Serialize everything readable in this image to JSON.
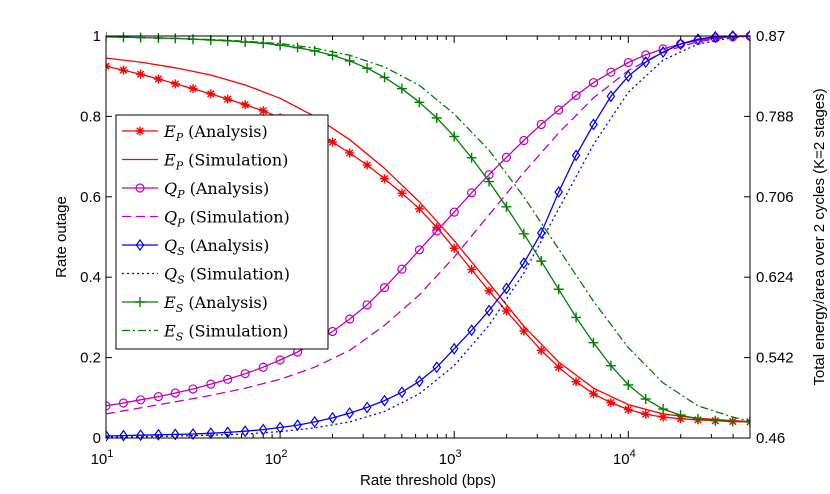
{
  "chart_data": {
    "type": "line",
    "xlabel": "Rate threshold (bps)",
    "ylabel": "Rate outage",
    "ylabel_right": "Total energy/area over 2 cycles (K=2 stages)",
    "x_scale": "log",
    "xlim": [
      10,
      50000
    ],
    "ylim": [
      0,
      1
    ],
    "x_ticks": [
      {
        "base": "10",
        "exp": "1"
      },
      {
        "base": "10",
        "exp": "2"
      },
      {
        "base": "10",
        "exp": "3"
      },
      {
        "base": "10",
        "exp": "4"
      }
    ],
    "y_ticks": [
      "0",
      "0.2",
      "0.4",
      "0.6",
      "0.8",
      "1"
    ],
    "y2_ticks": [
      "0.46",
      "0.542",
      "0.624",
      "0.706",
      "0.788",
      "0.87"
    ],
    "y2lim": [
      0.46,
      0.87
    ],
    "grid": false,
    "legend_position": "left-center",
    "colors": {
      "red": "#ff0000",
      "magenta": "#bf00bf",
      "blue": "#0000ff",
      "green": "#008000"
    },
    "series": [
      {
        "sym": "E",
        "sub": "P",
        "label": "(Analysis)",
        "color": "#ff0000",
        "dash": "",
        "marker": "asterisk",
        "x": [
          10,
          12.6,
          15.8,
          20,
          25,
          31.6,
          40,
          50,
          63,
          80,
          100,
          126,
          158,
          200,
          251,
          316,
          398,
          501,
          631,
          794,
          1000,
          1259,
          1585,
          1995,
          2512,
          3162,
          3981,
          5012,
          6310,
          7943,
          10000,
          12589,
          15849,
          19953,
          25119,
          31623,
          39811,
          50000
        ],
        "y": [
          0.925,
          0.915,
          0.905,
          0.893,
          0.881,
          0.869,
          0.856,
          0.843,
          0.829,
          0.814,
          0.797,
          0.779,
          0.759,
          0.736,
          0.709,
          0.679,
          0.645,
          0.609,
          0.57,
          0.524,
          0.472,
          0.419,
          0.366,
          0.316,
          0.266,
          0.218,
          0.176,
          0.14,
          0.11,
          0.088,
          0.071,
          0.059,
          0.052,
          0.048,
          0.045,
          0.043,
          0.041,
          0.04
        ]
      },
      {
        "sym": "E",
        "sub": "P",
        "label": "(Simulation)",
        "color": "#ff0000",
        "dash": "",
        "marker": "none",
        "x": [
          10,
          15.8,
          25,
          40,
          63,
          100,
          158,
          251,
          398,
          631,
          1000,
          1585,
          2512,
          3981,
          6310,
          10000,
          15849,
          25119,
          39811,
          50000
        ],
        "y": [
          0.945,
          0.935,
          0.921,
          0.903,
          0.878,
          0.845,
          0.8,
          0.742,
          0.671,
          0.587,
          0.491,
          0.385,
          0.278,
          0.189,
          0.124,
          0.083,
          0.06,
          0.049,
          0.043,
          0.041
        ]
      },
      {
        "sym": "Q",
        "sub": "P",
        "label": "(Analysis)",
        "color": "#bf00bf",
        "dash": "",
        "marker": "circle",
        "x": [
          10,
          12.6,
          15.8,
          20,
          25,
          31.6,
          40,
          50,
          63,
          80,
          100,
          126,
          158,
          200,
          251,
          316,
          398,
          501,
          631,
          794,
          1000,
          1259,
          1585,
          1995,
          2512,
          3162,
          3981,
          5012,
          6310,
          7943,
          10000,
          12589,
          15849,
          19953,
          25119,
          31623,
          39811,
          50000
        ],
        "y": [
          0.08,
          0.087,
          0.095,
          0.103,
          0.112,
          0.122,
          0.134,
          0.146,
          0.16,
          0.176,
          0.194,
          0.214,
          0.238,
          0.265,
          0.296,
          0.331,
          0.374,
          0.42,
          0.468,
          0.515,
          0.562,
          0.61,
          0.655,
          0.698,
          0.74,
          0.78,
          0.816,
          0.852,
          0.884,
          0.91,
          0.934,
          0.953,
          0.968,
          0.98,
          0.989,
          0.995,
          0.998,
          1.0
        ]
      },
      {
        "sym": "Q",
        "sub": "P",
        "label": "(Simulation)",
        "color": "#bf00bf",
        "dash": "9,5",
        "marker": "none",
        "x": [
          10,
          15.8,
          25,
          40,
          63,
          100,
          158,
          251,
          398,
          631,
          1000,
          1585,
          2512,
          3981,
          6310,
          10000,
          15849,
          25119,
          39811,
          50000
        ],
        "y": [
          0.06,
          0.075,
          0.09,
          0.106,
          0.124,
          0.146,
          0.176,
          0.218,
          0.28,
          0.356,
          0.45,
          0.555,
          0.66,
          0.759,
          0.846,
          0.914,
          0.96,
          0.986,
          0.998,
          1.0
        ]
      },
      {
        "sym": "Q",
        "sub": "S",
        "label": "(Analysis)",
        "color": "#0000ff",
        "dash": "",
        "marker": "diamond",
        "x": [
          10,
          12.6,
          15.8,
          20,
          25,
          31.6,
          40,
          50,
          63,
          80,
          100,
          126,
          158,
          200,
          251,
          316,
          398,
          501,
          631,
          794,
          1000,
          1259,
          1585,
          1995,
          2512,
          3162,
          3981,
          5012,
          6310,
          7943,
          10000,
          12589,
          15849,
          19953,
          25119,
          31623,
          39811,
          50000
        ],
        "y": [
          0.005,
          0.006,
          0.007,
          0.008,
          0.009,
          0.01,
          0.012,
          0.014,
          0.017,
          0.021,
          0.026,
          0.032,
          0.04,
          0.05,
          0.062,
          0.076,
          0.093,
          0.114,
          0.141,
          0.176,
          0.222,
          0.268,
          0.317,
          0.372,
          0.435,
          0.51,
          0.612,
          0.703,
          0.78,
          0.85,
          0.9,
          0.935,
          0.96,
          0.98,
          0.992,
          0.998,
          1.0,
          1.0
        ]
      },
      {
        "sym": "Q",
        "sub": "S",
        "label": "(Simulation)",
        "color": "#0000ff",
        "dash": "2,3",
        "marker": "none",
        "x": [
          10,
          15.8,
          25,
          40,
          63,
          100,
          158,
          251,
          398,
          631,
          1000,
          1585,
          2512,
          3981,
          6310,
          10000,
          15849,
          25119,
          39811,
          50000
        ],
        "y": [
          0.002,
          0.003,
          0.005,
          0.007,
          0.01,
          0.016,
          0.025,
          0.04,
          0.066,
          0.11,
          0.18,
          0.28,
          0.41,
          0.57,
          0.73,
          0.86,
          0.94,
          0.98,
          0.996,
          1.0
        ]
      },
      {
        "sym": "E",
        "sub": "S",
        "label": "(Analysis)",
        "color": "#008000",
        "dash": "",
        "marker": "plus",
        "x": [
          10,
          12.6,
          15.8,
          20,
          25,
          31.6,
          40,
          50,
          63,
          80,
          100,
          126,
          158,
          200,
          251,
          316,
          398,
          501,
          631,
          794,
          1000,
          1259,
          1585,
          1995,
          2512,
          3162,
          3981,
          5012,
          6310,
          7943,
          10000,
          12589,
          15849,
          19953,
          25119,
          31623,
          39811,
          50000
        ],
        "y": [
          0.998,
          0.997,
          0.996,
          0.995,
          0.994,
          0.992,
          0.99,
          0.988,
          0.985,
          0.982,
          0.977,
          0.971,
          0.963,
          0.952,
          0.938,
          0.92,
          0.897,
          0.869,
          0.835,
          0.796,
          0.75,
          0.697,
          0.638,
          0.575,
          0.508,
          0.44,
          0.37,
          0.3,
          0.237,
          0.18,
          0.132,
          0.097,
          0.072,
          0.057,
          0.048,
          0.043,
          0.041,
          0.04
        ]
      },
      {
        "sym": "E",
        "sub": "S",
        "label": "(Simulation)",
        "color": "#008000",
        "dash": "8,3,2,3",
        "marker": "none",
        "x": [
          10,
          15.8,
          25,
          40,
          63,
          100,
          158,
          251,
          398,
          631,
          1000,
          1585,
          2512,
          3981,
          6310,
          10000,
          15849,
          25119,
          39811,
          50000
        ],
        "y": [
          0.998,
          0.996,
          0.994,
          0.991,
          0.987,
          0.981,
          0.97,
          0.952,
          0.923,
          0.877,
          0.806,
          0.716,
          0.6,
          0.47,
          0.34,
          0.225,
          0.137,
          0.08,
          0.052,
          0.042
        ]
      }
    ]
  }
}
